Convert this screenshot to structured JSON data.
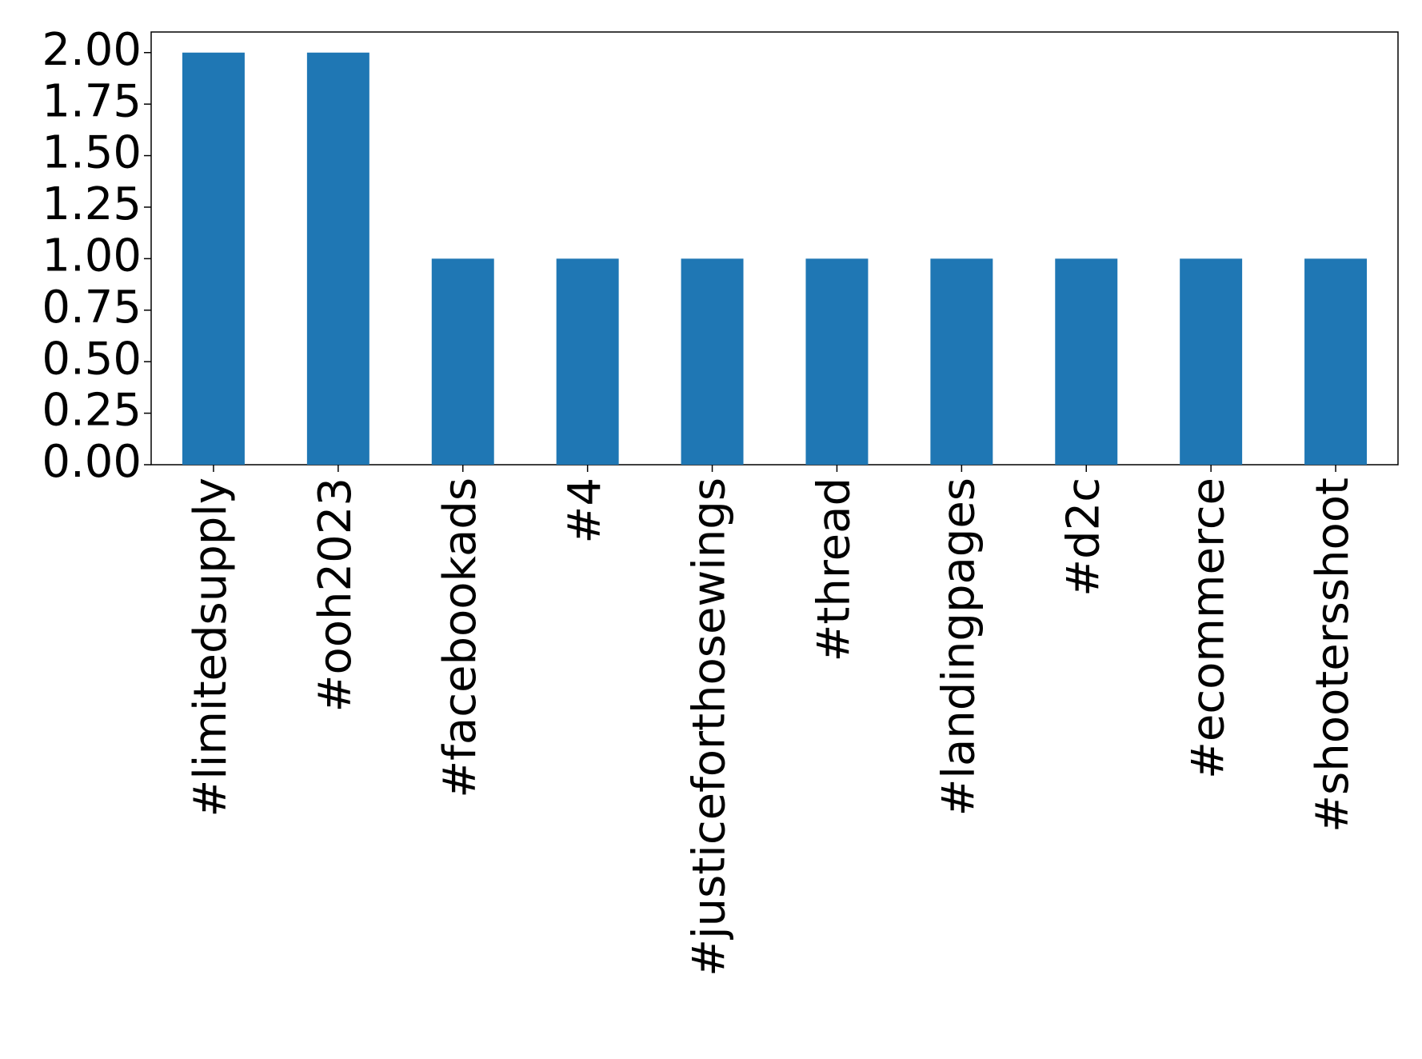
{
  "chart_data": {
    "type": "bar",
    "categories": [
      "#limitedsupply",
      "#ooh2023",
      "#facebookads",
      "#4",
      "#justiceforthosewings",
      "#thread",
      "#landingpages",
      "#d2c",
      "#ecommerce",
      "#shootersshoot"
    ],
    "values": [
      2,
      2,
      1,
      1,
      1,
      1,
      1,
      1,
      1,
      1
    ],
    "color": "#1f77b4",
    "ylim": [
      0,
      2.1
    ],
    "yticks": [
      {
        "value": 0,
        "label": "0.00"
      },
      {
        "value": 0.25,
        "label": "0.25"
      },
      {
        "value": 0.5,
        "label": "0.50"
      },
      {
        "value": 0.75,
        "label": "0.75"
      },
      {
        "value": 1,
        "label": "1.00"
      },
      {
        "value": 1.25,
        "label": "1.25"
      },
      {
        "value": 1.5,
        "label": "1.50"
      },
      {
        "value": 1.75,
        "label": "1.75"
      },
      {
        "value": 2,
        "label": "2.00"
      }
    ],
    "grid": false
  }
}
